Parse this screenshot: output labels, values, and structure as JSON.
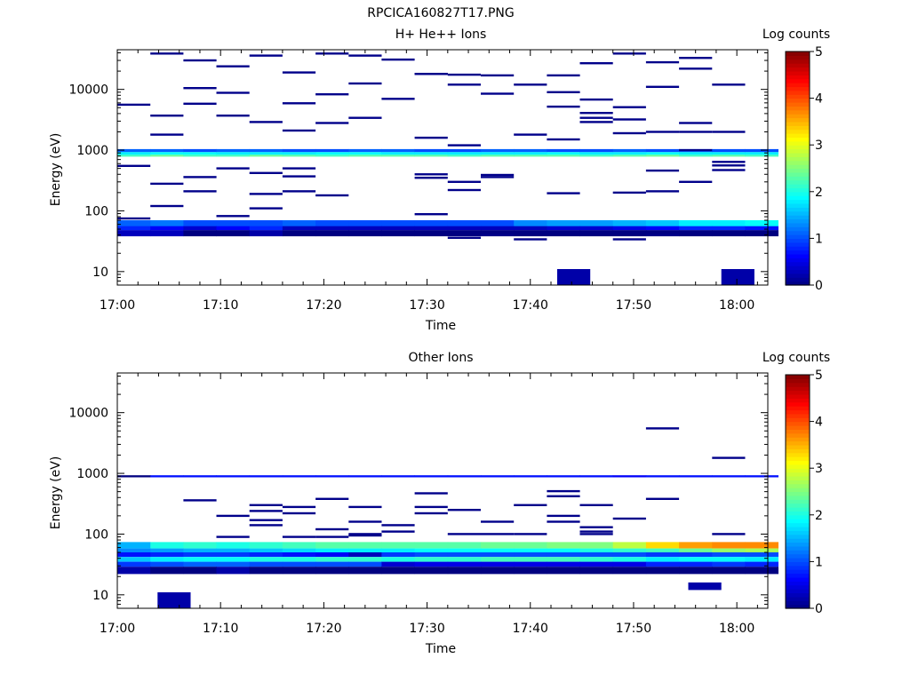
{
  "figure_title": "RPCICA160827T17.PNG",
  "chart_data": [
    {
      "type": "heatmap",
      "title": "H+ He++ Ions",
      "xlabel": "Time",
      "ylabel": "Energy (eV)",
      "x_ticks": [
        "17:00",
        "17:10",
        "17:20",
        "17:30",
        "17:40",
        "17:50",
        "18:00"
      ],
      "x_range_min": [
        0,
        63
      ],
      "y_ticks": [
        "10",
        "100",
        "1000",
        "10000"
      ],
      "y_scale": "log",
      "ylim": [
        6,
        45000
      ],
      "colorbar": {
        "label": "Log counts",
        "ticks": [
          "0",
          "1",
          "2",
          "3",
          "4",
          "5"
        ],
        "range": [
          0,
          5
        ],
        "colormap": "jet"
      },
      "bins_min": [
        0,
        3.2,
        6.4,
        9.6,
        12.8,
        16,
        19.2,
        22.4,
        25.6,
        28.8,
        32,
        35.2,
        38.4,
        41.6,
        44.8,
        48,
        51.2,
        54.4,
        57.6,
        60.8
      ],
      "bands": [
        {
          "e_lo": 55,
          "e_hi": 70,
          "values": [
            1.1,
            1.2,
            1.0,
            1.0,
            1.0,
            1.1,
            1.0,
            1.0,
            1.0,
            1.0,
            1.0,
            1.0,
            1.3,
            1.4,
            1.4,
            1.5,
            1.6,
            1.8,
            1.8,
            1.9
          ]
        },
        {
          "e_lo": 48,
          "e_hi": 56,
          "values": [
            0.8,
            0.6,
            0.4,
            0.6,
            0.8,
            0.3,
            0.3,
            0.3,
            0.3,
            0.3,
            0.3,
            0.3,
            0.3,
            0.4,
            0.4,
            0.5,
            0.6,
            0.8,
            0.8,
            0.7
          ]
        },
        {
          "e_lo": 38,
          "e_hi": 48,
          "values": [
            0.3,
            0.3,
            0,
            0,
            0.2,
            0,
            0,
            0,
            0,
            0,
            0,
            0,
            0,
            0,
            0,
            0,
            0,
            0,
            0,
            0
          ]
        },
        {
          "e_lo": 780,
          "e_hi": 840,
          "values": [
            2.2,
            2.4,
            2.2,
            2.2,
            2.4,
            2.3,
            2.2,
            2.3,
            2.3,
            2.3,
            2.2,
            2.3,
            2.3,
            2.3,
            2.2,
            2.3,
            2.4,
            2.2,
            2.3,
            2.2
          ]
        },
        {
          "e_lo": 840,
          "e_hi": 930,
          "values": [
            1.8,
            1.9,
            1.9,
            1.8,
            1.8,
            1.8,
            1.9,
            1.9,
            1.8,
            1.8,
            1.8,
            1.8,
            1.8,
            1.9,
            1.8,
            1.8,
            1.9,
            1.8,
            1.8,
            1.8
          ]
        },
        {
          "e_lo": 930,
          "e_hi": 1040,
          "values": [
            1.1,
            1.1,
            1.0,
            1.1,
            1.1,
            1.0,
            1.0,
            1.1,
            1.1,
            1.0,
            1.0,
            1.1,
            1.1,
            1.0,
            1.0,
            1.1,
            1.0,
            1.1,
            1.0,
            1.0
          ]
        }
      ],
      "sparse_cells": [
        [
          0,
          5600
        ],
        [
          1,
          39000
        ],
        [
          2,
          30000
        ],
        [
          3,
          24000
        ],
        [
          4,
          36000
        ],
        [
          5,
          19000
        ],
        [
          6,
          39000
        ],
        [
          7,
          36000
        ],
        [
          8,
          31000
        ],
        [
          9,
          18000
        ],
        [
          10,
          17500
        ],
        [
          11,
          17000
        ],
        [
          12,
          12000
        ],
        [
          13,
          17000
        ],
        [
          14,
          27000
        ],
        [
          15,
          39000
        ],
        [
          16,
          28000
        ],
        [
          17,
          33000
        ],
        [
          18,
          12000
        ],
        [
          1,
          3700
        ],
        [
          2,
          10500
        ],
        [
          3,
          8800
        ],
        [
          4,
          2900
        ],
        [
          5,
          5900
        ],
        [
          6,
          8300
        ],
        [
          7,
          12500
        ],
        [
          8,
          7000
        ],
        [
          9,
          18000
        ],
        [
          10,
          12000
        ],
        [
          11,
          8500
        ],
        [
          13,
          9000
        ],
        [
          14,
          6800
        ],
        [
          15,
          5100
        ],
        [
          16,
          11000
        ],
        [
          17,
          22000
        ],
        [
          0,
          550
        ],
        [
          1,
          280
        ],
        [
          2,
          360
        ],
        [
          3,
          500
        ],
        [
          4,
          420
        ],
        [
          5,
          500
        ],
        [
          6,
          180
        ],
        [
          9,
          400
        ],
        [
          10,
          300
        ],
        [
          11,
          390
        ],
        [
          13,
          1500
        ],
        [
          14,
          3400
        ],
        [
          15,
          3200
        ],
        [
          16,
          2000
        ],
        [
          17,
          2800
        ],
        [
          18,
          640
        ],
        [
          0,
          75
        ],
        [
          1,
          120
        ],
        [
          2,
          210
        ],
        [
          3,
          82
        ],
        [
          4,
          110
        ],
        [
          5,
          370
        ],
        [
          9,
          350
        ],
        [
          10,
          220
        ],
        [
          11,
          360
        ],
        [
          12,
          1800
        ],
        [
          14,
          4100
        ],
        [
          15,
          1900
        ],
        [
          16,
          460
        ],
        [
          17,
          1000
        ],
        [
          18,
          560
        ],
        [
          1,
          1800
        ],
        [
          3,
          3700
        ],
        [
          4,
          190
        ],
        [
          5,
          210
        ],
        [
          6,
          2800
        ],
        [
          7,
          3400
        ],
        [
          9,
          1600
        ],
        [
          10,
          1200
        ],
        [
          12,
          34
        ],
        [
          13,
          5200
        ],
        [
          14,
          2900
        ],
        [
          15,
          200
        ],
        [
          16,
          210
        ],
        [
          17,
          300
        ],
        [
          18,
          470
        ],
        [
          2,
          5800
        ],
        [
          5,
          2100
        ],
        [
          9,
          88
        ],
        [
          10,
          36
        ],
        [
          11,
          40
        ],
        [
          13,
          195
        ],
        [
          15,
          34
        ],
        [
          16,
          40
        ],
        [
          17,
          2000
        ],
        [
          18,
          2000
        ]
      ],
      "blocks": [
        {
          "t_lo": 42.6,
          "t_hi": 45.8,
          "e_lo": 6,
          "e_hi": 11,
          "value": 0.2
        },
        {
          "t_lo": 58.5,
          "t_hi": 61.7,
          "e_lo": 6,
          "e_hi": 11,
          "value": 0.2
        }
      ]
    },
    {
      "type": "heatmap",
      "title": "Other Ions",
      "xlabel": "Time",
      "ylabel": "Energy (eV)",
      "x_ticks": [
        "17:00",
        "17:10",
        "17:20",
        "17:30",
        "17:40",
        "17:50",
        "18:00"
      ],
      "x_range_min": [
        0,
        63
      ],
      "y_ticks": [
        "10",
        "100",
        "1000",
        "10000"
      ],
      "y_scale": "log",
      "ylim": [
        6,
        45000
      ],
      "colorbar": {
        "label": "Log counts",
        "ticks": [
          "0",
          "1",
          "2",
          "3",
          "4",
          "5"
        ],
        "range": [
          0,
          5
        ],
        "colormap": "jet"
      },
      "bins_min": [
        0,
        3.2,
        6.4,
        9.6,
        12.8,
        16,
        19.2,
        22.4,
        25.6,
        28.8,
        32,
        35.2,
        38.4,
        41.6,
        44.8,
        48,
        51.2,
        54.4,
        57.6,
        60.8
      ],
      "bands": [
        {
          "e_lo": 58,
          "e_hi": 74,
          "values": [
            1.5,
            2.0,
            2.1,
            2.0,
            2.1,
            2.2,
            2.3,
            2.3,
            2.3,
            2.3,
            2.3,
            2.4,
            2.4,
            2.5,
            2.5,
            2.8,
            3.3,
            3.6,
            3.7,
            3.7
          ]
        },
        {
          "e_lo": 50,
          "e_hi": 58,
          "values": [
            1.3,
            1.4,
            1.5,
            1.5,
            1.6,
            1.7,
            1.8,
            1.8,
            1.8,
            1.9,
            1.9,
            1.9,
            1.9,
            1.9,
            2.0,
            2.1,
            2.2,
            2.4,
            2.6,
            2.7
          ]
        },
        {
          "e_lo": 42,
          "e_hi": 50,
          "values": [
            0.7,
            0.8,
            0.9,
            0.9,
            0.8,
            0.7,
            0.6,
            0.3,
            0.9,
            1.0,
            1.0,
            1.0,
            1.0,
            1.0,
            1.0,
            1.0,
            0.9,
            0.9,
            1.0,
            1.0
          ]
        },
        {
          "e_lo": 35,
          "e_hi": 42,
          "values": [
            1.6,
            1.8,
            1.9,
            1.9,
            2.0,
            2.0,
            2.1,
            2.1,
            2.0,
            2.1,
            2.1,
            2.2,
            2.2,
            2.2,
            2.1,
            2.0,
            1.8,
            1.9,
            1.9,
            1.8
          ]
        },
        {
          "e_lo": 29,
          "e_hi": 35,
          "values": [
            0.9,
            1.0,
            1.1,
            1.1,
            1.0,
            1.0,
            1.0,
            1.0,
            0.4,
            0.5,
            0.5,
            0.5,
            0.5,
            0.5,
            0.5,
            0.5,
            0.8,
            0.8,
            0.9,
            0.8
          ]
        },
        {
          "e_lo": 22,
          "e_hi": 29,
          "values": [
            0.2,
            0,
            0,
            0.2,
            0,
            0,
            0,
            0,
            0,
            0,
            0,
            0,
            0,
            0,
            0,
            0,
            0,
            0,
            0,
            0
          ]
        },
        {
          "e_lo": 860,
          "e_hi": 930,
          "values": [
            0,
            0.7,
            0.7,
            0.7,
            0.7,
            0.7,
            0.7,
            0.7,
            0.7,
            0.7,
            0.7,
            0.7,
            0.7,
            0.7,
            0.7,
            0.6,
            0.7,
            0.7,
            0.7,
            0.7
          ]
        }
      ],
      "sparse_cells": [
        [
          2,
          360
        ],
        [
          3,
          200
        ],
        [
          4,
          300
        ],
        [
          5,
          280
        ],
        [
          6,
          380
        ],
        [
          7,
          280
        ],
        [
          8,
          140
        ],
        [
          9,
          470
        ],
        [
          10,
          250
        ],
        [
          11,
          160
        ],
        [
          12,
          300
        ],
        [
          13,
          510
        ],
        [
          14,
          300
        ],
        [
          15,
          180
        ],
        [
          16,
          380
        ],
        [
          18,
          1800
        ],
        [
          3,
          90
        ],
        [
          4,
          240
        ],
        [
          5,
          220
        ],
        [
          6,
          120
        ],
        [
          7,
          160
        ],
        [
          8,
          110
        ],
        [
          9,
          280
        ],
        [
          10,
          100
        ],
        [
          11,
          100
        ],
        [
          13,
          420
        ],
        [
          14,
          100
        ],
        [
          16,
          5500
        ],
        [
          18,
          100
        ],
        [
          4,
          170
        ],
        [
          5,
          90
        ],
        [
          6,
          90
        ],
        [
          7,
          100
        ],
        [
          9,
          220
        ],
        [
          12,
          100
        ],
        [
          13,
          200
        ],
        [
          14,
          130
        ],
        [
          4,
          140
        ],
        [
          7,
          95
        ],
        [
          13,
          160
        ],
        [
          14,
          110
        ]
      ],
      "blocks": [
        {
          "t_lo": 3.9,
          "t_hi": 7.1,
          "e_lo": 6,
          "e_hi": 11,
          "value": 0.2
        },
        {
          "t_lo": 55.3,
          "t_hi": 58.5,
          "e_lo": 12,
          "e_hi": 16,
          "value": 0.2
        }
      ]
    }
  ]
}
